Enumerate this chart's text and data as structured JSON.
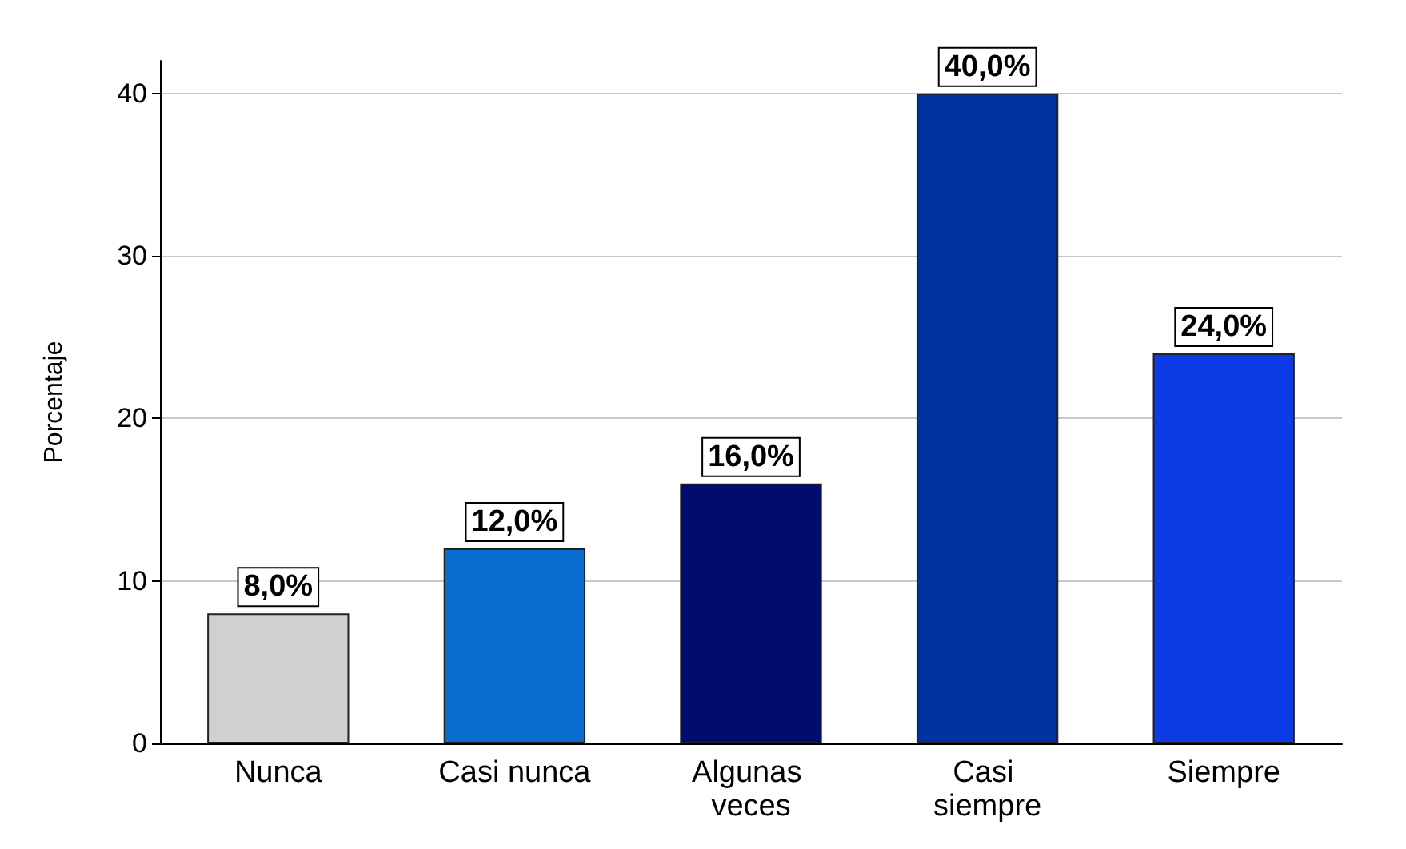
{
  "chart_data": {
    "type": "bar",
    "ylabel": "Porcentaje",
    "categories": [
      "Nunca",
      "Casi nunca",
      "Algunas veces",
      "Casi siempre",
      "Siempre"
    ],
    "values": [
      8,
      12,
      16,
      40,
      24
    ],
    "colors": [
      "#d0d0d0",
      "#0a6ccf",
      "#000d6e",
      "#0033a0",
      "#0d3ce6"
    ],
    "value_labels": [
      "8,0%",
      "12,0%",
      "16,0%",
      "40,0%",
      "24,0%"
    ],
    "ylim": [
      0,
      42
    ],
    "yticks": [
      0,
      10,
      20,
      30,
      40
    ],
    "grid": "y"
  }
}
